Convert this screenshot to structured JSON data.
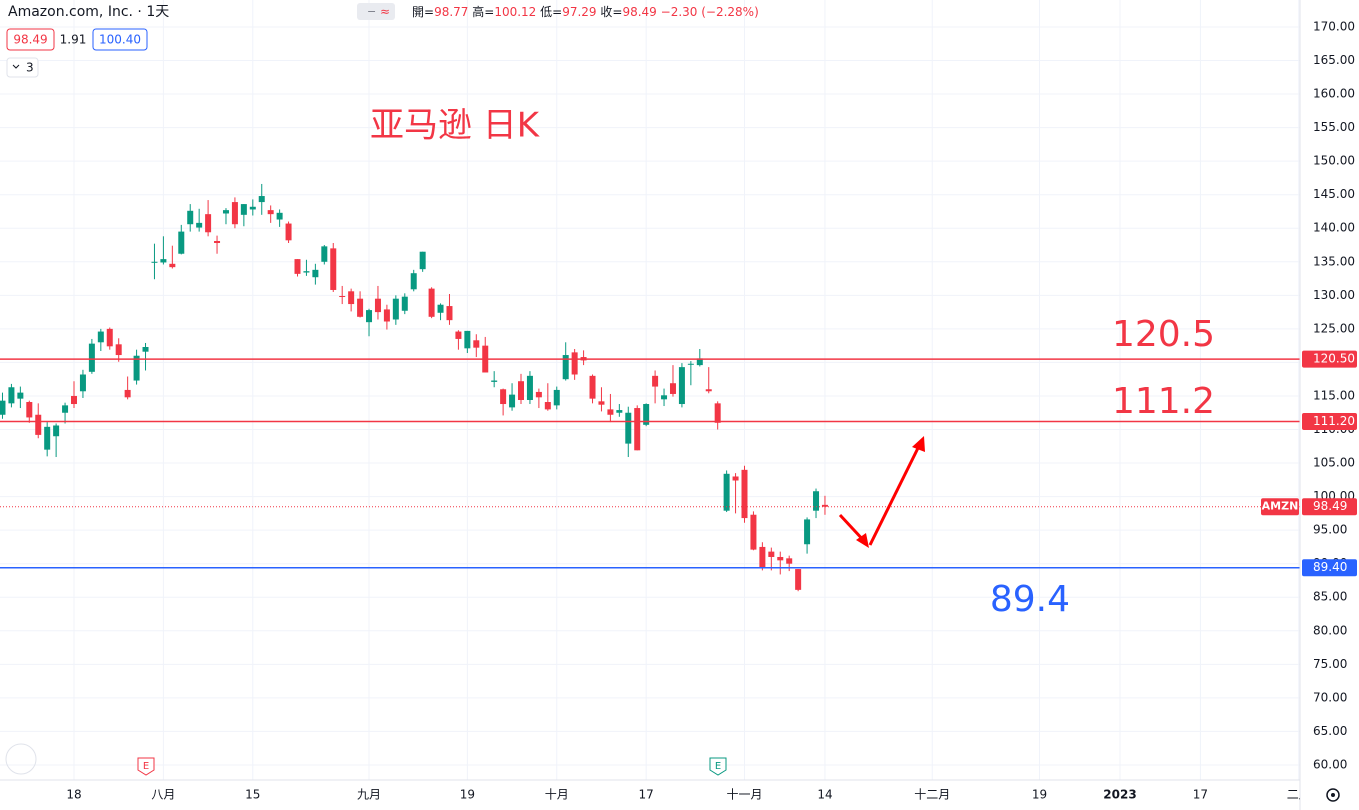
{
  "header": {
    "title": "Amazon.com, Inc. · 1天",
    "ohlc_labels": [
      "開=",
      "高=",
      "低=",
      "收="
    ],
    "change": "−2.30 (−2.28%)",
    "quote": [
      "98.49",
      "1.91",
      "100.40"
    ],
    "indicator_count": "3"
  },
  "chart_data": {
    "type": "candlestick",
    "title": "亚马逊 日K",
    "symbol_tag": "AMZN",
    "up_color": "#089981",
    "down_color": "#f23645",
    "grid": true,
    "ylim": [
      57.76,
      174.02
    ],
    "yticks": [
      {
        "value": 60,
        "label": "60.00"
      },
      {
        "value": 65,
        "label": "65.00"
      },
      {
        "value": 70,
        "label": "70.00"
      },
      {
        "value": 75,
        "label": "75.00"
      },
      {
        "value": 80,
        "label": "80.00"
      },
      {
        "value": 85,
        "label": "85.00"
      },
      {
        "value": 90,
        "label": "90.00"
      },
      {
        "value": 95,
        "label": "95.00"
      },
      {
        "value": 100,
        "label": "100.00"
      },
      {
        "value": 105,
        "label": "105.00"
      },
      {
        "value": 110,
        "label": "110.00"
      },
      {
        "value": 115,
        "label": "115.00"
      },
      {
        "value": 120,
        "label": "120.00"
      },
      {
        "value": 125,
        "label": "125.00"
      },
      {
        "value": 130,
        "label": "130.00"
      },
      {
        "value": 135,
        "label": "135.00"
      },
      {
        "value": 140,
        "label": "140.00"
      },
      {
        "value": 145,
        "label": "145.00"
      },
      {
        "value": 150,
        "label": "150.00"
      },
      {
        "value": 155,
        "label": "155.00"
      },
      {
        "value": 160,
        "label": "160.00"
      },
      {
        "value": 165,
        "label": "165.00"
      },
      {
        "value": 170,
        "label": "170.00"
      }
    ],
    "categories": [
      null,
      null,
      null,
      null,
      null,
      null,
      null,
      null,
      "18",
      null,
      null,
      null,
      null,
      null,
      null,
      null,
      null,
      null,
      "八月",
      null,
      null,
      null,
      null,
      null,
      null,
      null,
      null,
      null,
      "15",
      null,
      null,
      null,
      null,
      null,
      null,
      null,
      null,
      null,
      null,
      null,
      null,
      "九月",
      null,
      null,
      null,
      null,
      null,
      null,
      null,
      null,
      null,
      null,
      "19",
      null,
      null,
      null,
      null,
      null,
      null,
      null,
      null,
      null,
      "十月",
      null,
      null,
      null,
      null,
      null,
      null,
      null,
      null,
      null,
      "17",
      null,
      null,
      null,
      null,
      null,
      null,
      null,
      null,
      null,
      null,
      "十一月",
      null,
      null,
      null,
      null,
      null,
      null,
      null,
      null,
      "14",
      null,
      null,
      null,
      null,
      null,
      null,
      null,
      null,
      null,
      null,
      null,
      "十二月",
      null,
      null,
      null,
      null,
      null,
      null,
      null,
      null,
      null,
      null,
      null,
      "19",
      null,
      null,
      null,
      null,
      null,
      null,
      null,
      null,
      "2023",
      null,
      null,
      null,
      null,
      null,
      null,
      null,
      null,
      "17",
      null,
      null,
      null,
      null,
      null,
      null,
      null,
      null,
      null,
      null,
      "二月"
    ],
    "candles": [
      [
        112.2,
        115.5,
        111.6,
        114.3
      ],
      [
        113.9,
        116.8,
        113.3,
        116.3
      ],
      [
        114.6,
        116.4,
        113.2,
        115.5
      ],
      [
        114.1,
        114.3,
        111.0,
        111.8
      ],
      [
        112.2,
        113.9,
        108.7,
        109.2
      ],
      [
        107.0,
        111.1,
        106.0,
        110.4
      ],
      [
        109.0,
        110.9,
        105.9,
        110.6
      ],
      [
        112.5,
        114.0,
        110.9,
        113.6
      ],
      [
        115.0,
        117.2,
        113.2,
        113.8
      ],
      [
        115.7,
        118.9,
        114.7,
        118.2
      ],
      [
        118.6,
        123.5,
        118.3,
        122.8
      ],
      [
        123.0,
        125.0,
        121.7,
        124.6
      ],
      [
        125.0,
        125.2,
        121.9,
        122.4
      ],
      [
        122.7,
        123.6,
        120.1,
        121.1
      ],
      [
        115.9,
        117.9,
        114.5,
        114.8
      ],
      [
        117.3,
        121.9,
        116.7,
        121.0
      ],
      [
        121.6,
        122.9,
        118.8,
        122.3
      ],
      [
        134.9,
        137.7,
        132.4,
        135.0
      ],
      [
        134.9,
        138.8,
        134.6,
        135.4
      ],
      [
        134.7,
        137.4,
        134.0,
        134.2
      ],
      [
        136.2,
        140.5,
        136.1,
        139.5
      ],
      [
        140.6,
        143.6,
        139.5,
        142.6
      ],
      [
        140.1,
        142.9,
        139.5,
        140.8
      ],
      [
        142.1,
        144.2,
        138.8,
        139.4
      ],
      [
        138.1,
        138.9,
        136.2,
        137.8
      ],
      [
        142.2,
        143.0,
        140.6,
        142.7
      ],
      [
        143.9,
        144.6,
        140.0,
        140.6
      ],
      [
        142.0,
        143.6,
        140.3,
        143.6
      ],
      [
        142.8,
        144.3,
        141.9,
        143.2
      ],
      [
        143.9,
        146.6,
        142.0,
        144.8
      ],
      [
        142.7,
        143.4,
        140.8,
        142.1
      ],
      [
        141.3,
        142.8,
        140.2,
        142.3
      ],
      [
        140.7,
        141.0,
        137.8,
        138.2
      ],
      [
        135.4,
        135.4,
        132.8,
        133.2
      ],
      [
        133.4,
        135.3,
        132.9,
        133.6
      ],
      [
        132.7,
        134.7,
        131.6,
        133.8
      ],
      [
        135.0,
        137.5,
        134.6,
        137.3
      ],
      [
        137.0,
        137.8,
        130.5,
        130.8
      ],
      [
        129.9,
        131.4,
        128.7,
        129.8
      ],
      [
        130.6,
        131.0,
        127.6,
        128.7
      ],
      [
        129.5,
        130.6,
        126.7,
        126.8
      ],
      [
        126.0,
        128.0,
        123.9,
        127.8
      ],
      [
        129.5,
        131.4,
        126.4,
        127.5
      ],
      [
        127.9,
        128.6,
        124.9,
        126.1
      ],
      [
        126.4,
        130.0,
        125.6,
        129.5
      ],
      [
        127.7,
        130.3,
        127.2,
        129.8
      ],
      [
        130.9,
        133.8,
        130.6,
        133.3
      ],
      [
        133.9,
        136.5,
        133.5,
        136.5
      ],
      [
        131.0,
        131.2,
        126.6,
        126.8
      ],
      [
        127.4,
        128.8,
        126.3,
        128.6
      ],
      [
        128.4,
        130.2,
        125.6,
        126.3
      ],
      [
        124.6,
        124.8,
        121.9,
        123.5
      ],
      [
        122.1,
        124.7,
        121.4,
        124.7
      ],
      [
        123.3,
        124.2,
        120.8,
        122.2
      ],
      [
        122.5,
        123.8,
        118.5,
        118.5
      ],
      [
        117.1,
        118.7,
        116.3,
        117.3
      ],
      [
        116.0,
        116.1,
        112.1,
        113.8
      ],
      [
        113.3,
        116.9,
        112.8,
        115.2
      ],
      [
        117.2,
        118.3,
        113.8,
        114.4
      ],
      [
        114.4,
        118.7,
        113.8,
        118.0
      ],
      [
        115.6,
        116.1,
        113.2,
        114.8
      ],
      [
        114.1,
        116.9,
        112.8,
        113.0
      ],
      [
        113.6,
        116.4,
        113.0,
        115.9
      ],
      [
        117.5,
        123.0,
        117.3,
        121.1
      ],
      [
        121.5,
        122.0,
        117.4,
        118.2
      ],
      [
        120.8,
        121.8,
        119.6,
        120.3
      ],
      [
        118.0,
        118.2,
        113.9,
        114.6
      ],
      [
        114.2,
        116.3,
        112.7,
        113.7
      ],
      [
        113.0,
        115.3,
        111.1,
        112.2
      ],
      [
        112.5,
        113.8,
        111.9,
        112.9
      ],
      [
        107.9,
        113.4,
        105.9,
        112.5
      ],
      [
        113.2,
        113.6,
        106.9,
        106.9
      ],
      [
        110.7,
        113.9,
        110.5,
        113.8
      ],
      [
        118.0,
        118.8,
        113.9,
        116.4
      ],
      [
        114.5,
        116.1,
        113.5,
        115.1
      ],
      [
        116.9,
        119.6,
        114.9,
        115.3
      ],
      [
        113.8,
        119.9,
        113.3,
        119.3
      ],
      [
        119.7,
        120.2,
        116.6,
        119.8
      ],
      [
        119.6,
        122.0,
        119.4,
        120.6
      ],
      [
        116.0,
        119.3,
        115.4,
        115.7
      ],
      [
        113.9,
        114.2,
        110.0,
        111.0
      ],
      [
        97.9,
        103.9,
        97.7,
        103.4
      ],
      [
        103.0,
        103.5,
        97.5,
        102.4
      ],
      [
        103.99,
        104.6,
        96.1,
        96.8
      ],
      [
        97.3,
        97.8,
        92.0,
        92.1
      ],
      [
        92.5,
        93.2,
        89.0,
        89.3
      ],
      [
        91.8,
        92.4,
        89.0,
        91.0
      ],
      [
        91.0,
        91.8,
        88.4,
        90.5
      ],
      [
        90.8,
        91.2,
        88.9,
        90.0
      ],
      [
        89.2,
        89.2,
        85.9,
        86.1
      ],
      [
        92.9,
        96.9,
        91.5,
        96.6
      ],
      [
        97.9,
        101.2,
        96.8,
        100.8
      ],
      [
        98.77,
        100.12,
        97.29,
        98.49
      ],
      null,
      null,
      null,
      null,
      null,
      null,
      null,
      null,
      null,
      null,
      null,
      null,
      null,
      null,
      null,
      null,
      null,
      null,
      null,
      null,
      null,
      null,
      null,
      null,
      null,
      null,
      null,
      null,
      null,
      null,
      null,
      null,
      null,
      null,
      null,
      null,
      null,
      null,
      null,
      null,
      null,
      null,
      null,
      null,
      null,
      null,
      null,
      null,
      null,
      null,
      null,
      null,
      null
    ],
    "levels": [
      {
        "value": 120.5,
        "label": "120.50",
        "annotation": "120.5",
        "color": "#f23645"
      },
      {
        "value": 111.2,
        "label": "111.20",
        "annotation": "111.2",
        "color": "#f23645"
      },
      {
        "value": 89.4,
        "label": "89.40",
        "annotation": "89.4",
        "color": "#2962ff"
      }
    ],
    "earnings_markers": [
      "E",
      "E"
    ]
  }
}
